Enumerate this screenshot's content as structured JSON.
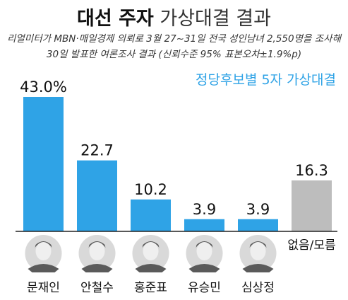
{
  "header": {
    "title_bold": "대선 주자",
    "title_light": "가상대결 결과",
    "subtitle_line1": "리얼미터가 MBN·매일경제 의뢰로 3월 27~31일 전국 성인남녀 2,550명을 조사해",
    "subtitle_line2": "30일 발표한 여론조사 결과 (신뢰수준 95% 표본오차±1.9%p)"
  },
  "chart_data": {
    "type": "bar",
    "title": "정당후보별 5자 가상대결",
    "categories": [
      "문재인",
      "안철수",
      "홍준표",
      "유승민",
      "심상정",
      "없음/모름"
    ],
    "values": [
      43.0,
      22.7,
      10.2,
      3.9,
      3.9,
      16.3
    ],
    "value_labels": [
      "43.0%",
      "22.7",
      "10.2",
      "3.9",
      "3.9",
      "16.3"
    ],
    "bar_colors": [
      "#2fa3e6",
      "#2fa3e6",
      "#2fa3e6",
      "#2fa3e6",
      "#2fa3e6",
      "#bdbdbd"
    ],
    "ylim": [
      0,
      43.0
    ],
    "grid": false,
    "photos": [
      true,
      true,
      true,
      true,
      true,
      false
    ]
  },
  "colors": {
    "accent": "#2fa3e6",
    "neutral": "#bdbdbd",
    "axis": "#222222",
    "text": "#111111"
  }
}
